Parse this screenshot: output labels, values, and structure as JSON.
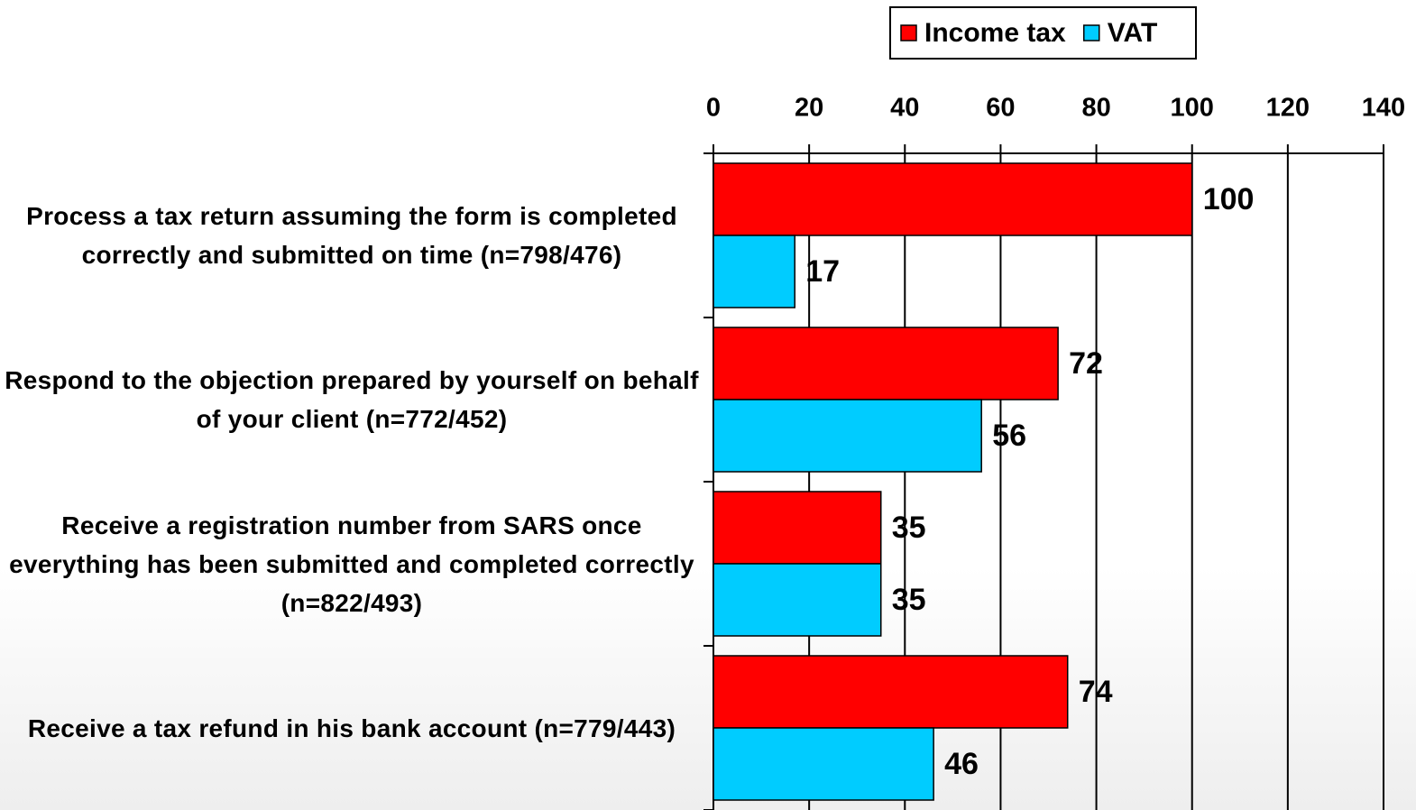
{
  "chart_data": {
    "type": "barh",
    "categories": [
      "Process a tax return assuming the form is completed correctly and submitted on time (n=798/476)",
      "Respond to the objection prepared by yourself on behalf of your client (n=772/452)",
      "Receive a registration number from SARS once everything has been submitted and completed correctly (n=822/493)",
      "Receive a tax refund in his bank account (n=779/443)"
    ],
    "series": [
      {
        "name": "Income tax",
        "color": "#ff0000",
        "values": [
          100,
          72,
          35,
          74
        ]
      },
      {
        "name": "VAT",
        "color": "#00ccff",
        "values": [
          17,
          56,
          35,
          46
        ]
      }
    ],
    "xlim": [
      0,
      140
    ],
    "xticks": [
      0,
      20,
      40,
      60,
      80,
      100,
      120,
      140
    ],
    "grid": true,
    "legend": "top"
  }
}
